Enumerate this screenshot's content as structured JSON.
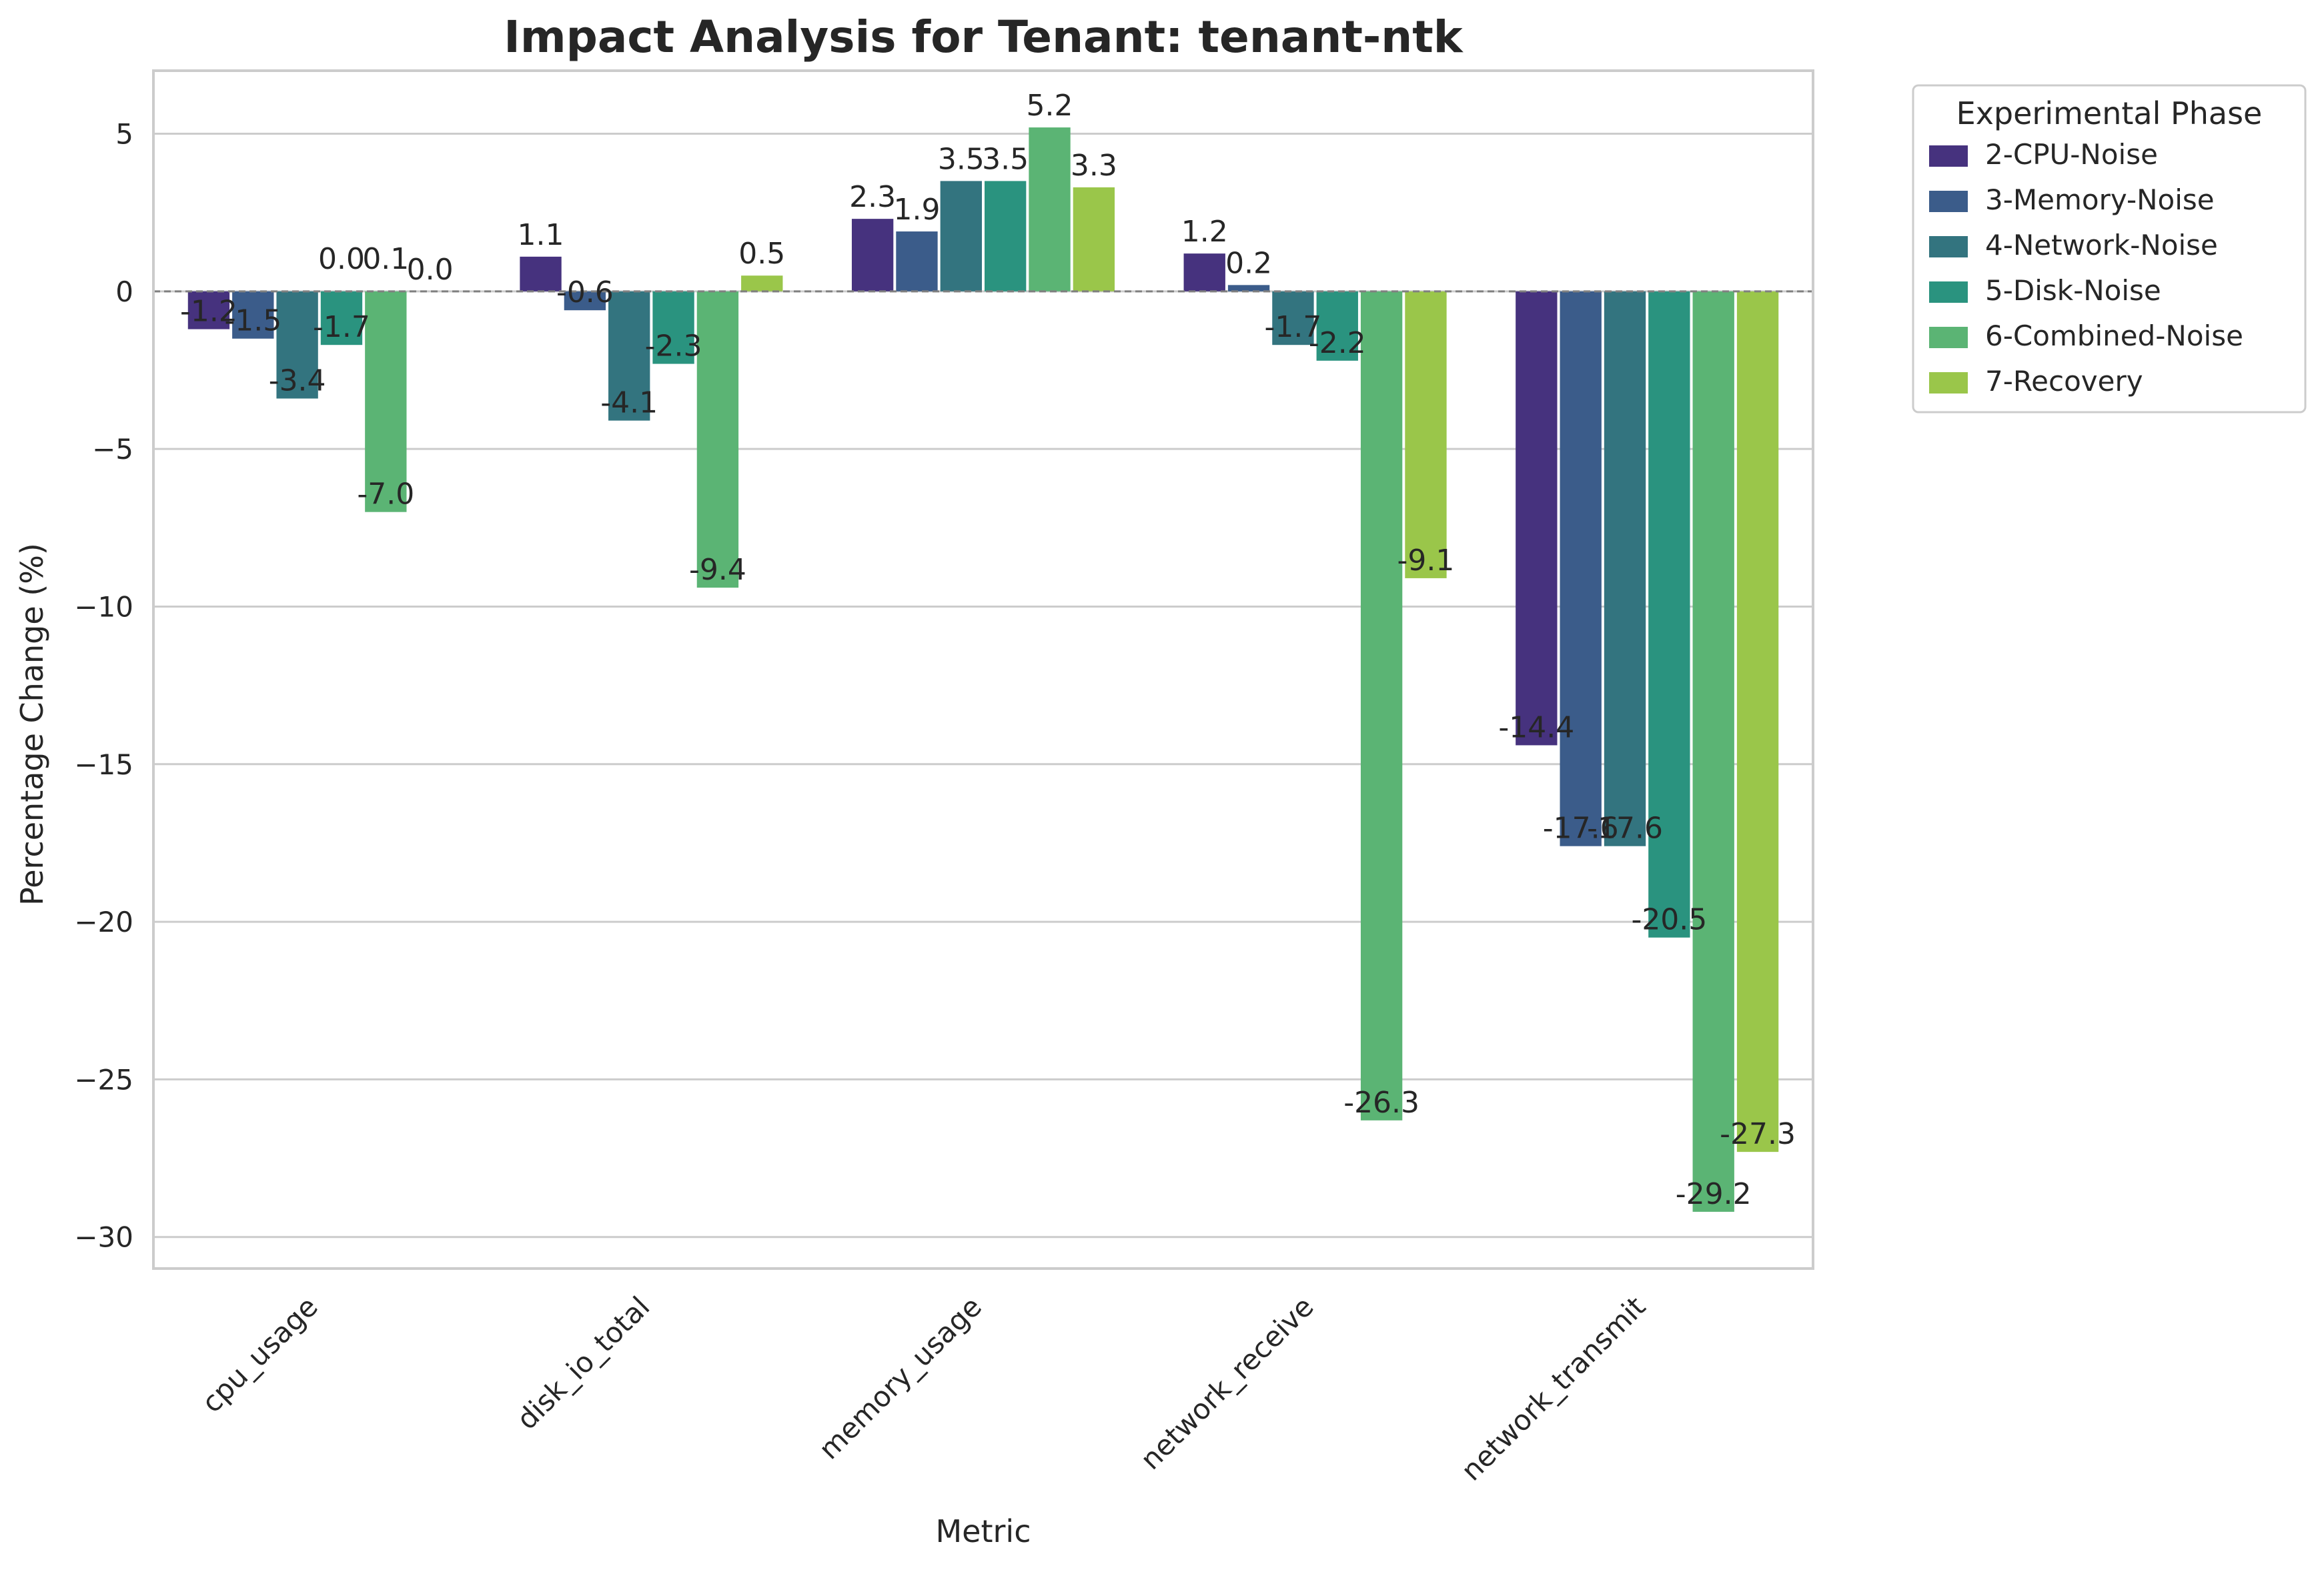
{
  "chart_data": {
    "type": "bar",
    "title": "Impact Analysis for Tenant: tenant-ntk",
    "xlabel": "Metric",
    "ylabel": "Percentage Change (%)",
    "ylim": [
      -31,
      7
    ],
    "yticks": [
      5,
      0,
      -5,
      -10,
      -15,
      -20,
      -25,
      -30
    ],
    "ytick_labels": [
      "5",
      "0",
      "−5",
      "−10",
      "−15",
      "−20",
      "−25",
      "−30"
    ],
    "grid": true,
    "zero_line": "dashed",
    "categories": [
      "cpu_usage",
      "disk_io_total",
      "memory_usage",
      "network_receive",
      "network_transmit"
    ],
    "legend": {
      "title": "Experimental Phase",
      "placement": "outside-right"
    },
    "series": [
      {
        "name": "2-CPU-Noise",
        "color": "#46327e",
        "values": [
          -1.2,
          1.1,
          2.3,
          1.2,
          -14.4
        ],
        "labels": [
          "-1.2",
          "1.1",
          "2.3",
          "1.2",
          "-14.4"
        ]
      },
      {
        "name": "3-Memory-Noise",
        "color": "#3b5c8a",
        "values": [
          -1.5,
          -0.6,
          1.9,
          0.2,
          -17.6
        ],
        "labels": [
          "-1.5",
          "-0.6",
          "1.9",
          "0.2",
          "-17.6"
        ]
      },
      {
        "name": "4-Network-Noise",
        "color": "#33747f",
        "values": [
          -3.4,
          -4.1,
          3.5,
          -1.7,
          -17.6
        ],
        "labels": [
          "-3.4",
          "-4.1",
          "3.5",
          "-1.7",
          "-17.6"
        ]
      },
      {
        "name": "5-Disk-Noise",
        "color": "#2a937f",
        "values": [
          -1.7,
          -2.3,
          3.5,
          -2.2,
          -20.5
        ],
        "labels": [
          "-1.7",
          "-2.3",
          "3.5",
          "-2.2",
          "-20.5"
        ]
      },
      {
        "name": "6-Combined-Noise",
        "color": "#5bb474",
        "values": [
          -7.0,
          -9.4,
          5.2,
          -26.3,
          -29.2
        ],
        "labels": [
          "-7.0",
          "-9.4",
          "5.2",
          "-26.3",
          "-29.2"
        ]
      },
      {
        "name": "7-Recovery",
        "color": "#9ac64a",
        "values": [
          0.0,
          0.5,
          3.3,
          -9.1,
          -27.3
        ],
        "labels": [
          "0.0",
          "0.5",
          "3.3",
          "-9.1",
          "-27.3"
        ]
      }
    ],
    "extra_labels": [
      {
        "category": "cpu_usage",
        "text": "0.0",
        "near_series": "5-Disk-Noise"
      },
      {
        "category": "cpu_usage",
        "text": "0.1",
        "near_series": "6-Combined-Noise"
      }
    ]
  }
}
